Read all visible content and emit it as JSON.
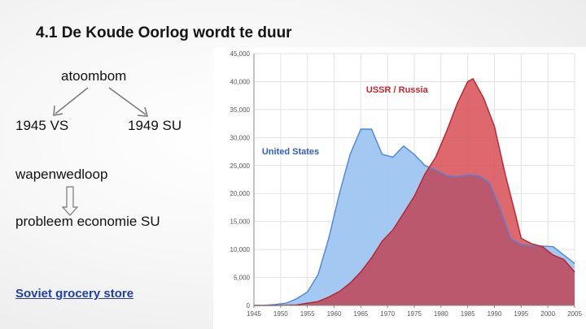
{
  "slide": {
    "title": "4.1 De Koude Oorlog wordt te duur",
    "tree_root": "atoombom",
    "tree_left": "1945 VS",
    "tree_right": "1949 SU",
    "race": "wapenwedloop",
    "result": "probleem economie SU",
    "link_text": "Soviet grocery store"
  },
  "colors": {
    "us_fill": "#9ec6f2",
    "us_line": "#4a86d8",
    "us_label": "#2f5dc8",
    "ussr_fill": "#d9595f",
    "ussr_line": "#b8222c",
    "ussr_label": "#c8262f",
    "overlap": "#b8566e"
  },
  "chart_data": {
    "type": "area",
    "title": "",
    "xlabel": "",
    "ylabel": "",
    "xlim": [
      1945,
      2005
    ],
    "ylim": [
      0,
      45000
    ],
    "grid": true,
    "x_ticks": [
      "1945",
      "1950",
      "1955",
      "1960",
      "1965",
      "1970",
      "1975",
      "1980",
      "1985",
      "1990",
      "1995",
      "2000",
      "2005"
    ],
    "y_ticks": [
      "0",
      "5,000",
      "10,000",
      "15,000",
      "20,000",
      "25,000",
      "30,000",
      "35,000",
      "40,000",
      "45,000"
    ],
    "series": [
      {
        "name": "United States",
        "label_at": [
          1946.5,
          27000
        ],
        "x": [
          1945,
          1947,
          1949,
          1951,
          1953,
          1955,
          1957,
          1959,
          1961,
          1963,
          1965,
          1967,
          1969,
          1971,
          1973,
          1975,
          1977,
          1979,
          1981,
          1983,
          1985,
          1987,
          1989,
          1991,
          1993,
          1995,
          1997,
          1999,
          2001,
          2003,
          2005
        ],
        "values": [
          6,
          20,
          170,
          400,
          1200,
          2400,
          5500,
          12000,
          20000,
          27000,
          31500,
          31500,
          27000,
          26500,
          28500,
          27000,
          25000,
          24200,
          23200,
          23000,
          23300,
          23200,
          22000,
          17500,
          12000,
          10900,
          10600,
          10600,
          10500,
          9000,
          7500
        ]
      },
      {
        "name": "USSR / Russia",
        "label_at": [
          1966,
          38000
        ],
        "x": [
          1945,
          1949,
          1953,
          1955,
          1957,
          1959,
          1961,
          1963,
          1965,
          1967,
          1969,
          1971,
          1973,
          1975,
          1977,
          1979,
          1981,
          1983,
          1985,
          1986,
          1988,
          1990,
          1992,
          1994,
          1995,
          1997,
          1999,
          2001,
          2003,
          2005
        ],
        "values": [
          0,
          0,
          100,
          400,
          700,
          1500,
          2500,
          4000,
          6000,
          8500,
          11500,
          13500,
          16500,
          19500,
          23500,
          26500,
          31000,
          36000,
          40000,
          40500,
          37000,
          32000,
          23500,
          16000,
          12000,
          11000,
          10500,
          9000,
          8200,
          6000
        ]
      }
    ]
  }
}
